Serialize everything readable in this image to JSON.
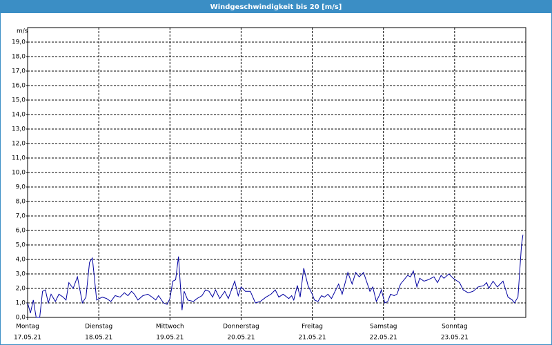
{
  "chart_data": {
    "type": "line",
    "title": "Windgeschwindigkeit bis 20 [m/s]",
    "y_label": "m/s",
    "color": "#0000a0",
    "grid": true,
    "xlim": [
      0,
      7
    ],
    "ylim": [
      0,
      20
    ],
    "xticks": [
      {
        "value": 0,
        "label": "Montag",
        "date": "17.05.21"
      },
      {
        "value": 1,
        "label": "Dienstag",
        "date": "18.05.21"
      },
      {
        "value": 2,
        "label": "Mittwoch",
        "date": "19.05.21"
      },
      {
        "value": 3,
        "label": "Donnerstag",
        "date": "20.05.21"
      },
      {
        "value": 4,
        "label": "Freitag",
        "date": "21.05.21"
      },
      {
        "value": 5,
        "label": "Samstag",
        "date": "22.05.21"
      },
      {
        "value": 6,
        "label": "Sonntag",
        "date": "23.05.21"
      }
    ],
    "yticks": [
      {
        "value": 0,
        "label": "0,0"
      },
      {
        "value": 1,
        "label": "1,0"
      },
      {
        "value": 2,
        "label": "2,0"
      },
      {
        "value": 3,
        "label": "3,0"
      },
      {
        "value": 4,
        "label": "4,0"
      },
      {
        "value": 5,
        "label": "5,0"
      },
      {
        "value": 6,
        "label": "6,0"
      },
      {
        "value": 7,
        "label": "7,0"
      },
      {
        "value": 8,
        "label": "8,0"
      },
      {
        "value": 9,
        "label": "9,0"
      },
      {
        "value": 10,
        "label": "10,0"
      },
      {
        "value": 11,
        "label": "11,0"
      },
      {
        "value": 12,
        "label": "12,0"
      },
      {
        "value": 13,
        "label": "13,0"
      },
      {
        "value": 14,
        "label": "14,0"
      },
      {
        "value": 15,
        "label": "15,0"
      },
      {
        "value": 16,
        "label": "16,0"
      },
      {
        "value": 17,
        "label": "17,0"
      },
      {
        "value": 18,
        "label": "18,0"
      },
      {
        "value": 19,
        "label": "19,0"
      }
    ],
    "x": [
      0,
      0.04,
      0.08,
      0.12,
      0.17,
      0.21,
      0.25,
      0.29,
      0.33,
      0.39,
      0.44,
      0.5,
      0.54,
      0.58,
      0.64,
      0.7,
      0.77,
      0.82,
      0.87,
      0.91,
      0.97,
      1.05,
      1.11,
      1.17,
      1.23,
      1.3,
      1.36,
      1.41,
      1.46,
      1.5,
      1.55,
      1.62,
      1.69,
      1.75,
      1.8,
      1.84,
      1.91,
      1.96,
      2,
      2.04,
      2.08,
      2.12,
      2.17,
      2.2,
      2.25,
      2.33,
      2.38,
      2.45,
      2.5,
      2.55,
      2.6,
      2.64,
      2.7,
      2.77,
      2.82,
      2.91,
      2.96,
      3,
      3.06,
      3.13,
      3.2,
      3.27,
      3.35,
      3.42,
      3.48,
      3.53,
      3.59,
      3.67,
      3.71,
      3.74,
      3.79,
      3.83,
      3.88,
      3.94,
      4,
      4.03,
      4.08,
      4.13,
      4.17,
      4.22,
      4.27,
      4.37,
      4.42,
      4.5,
      4.56,
      4.61,
      4.66,
      4.72,
      4.81,
      4.85,
      4.9,
      4.95,
      4.97,
      5.02,
      5.06,
      5.1,
      5.15,
      5.19,
      5.24,
      5.34,
      5.38,
      5.42,
      5.47,
      5.51,
      5.57,
      5.63,
      5.71,
      5.76,
      5.81,
      5.85,
      5.92,
      5.98,
      6.07,
      6.12,
      6.19,
      6.26,
      6.33,
      6.41,
      6.45,
      6.48,
      6.54,
      6.6,
      6.68,
      6.75,
      6.81,
      6.84,
      6.89,
      6.94,
      6.96
    ],
    "values": [
      1.0,
      0.3,
      1.2,
      0,
      0,
      1.8,
      1.9,
      1.0,
      1.6,
      1.1,
      1.6,
      1.4,
      1.2,
      2.4,
      2.0,
      2.8,
      1.0,
      1.4,
      3.8,
      4.1,
      1.2,
      1.4,
      1.3,
      1.1,
      1.5,
      1.4,
      1.7,
      1.5,
      1.8,
      1.6,
      1.2,
      1.5,
      1.6,
      1.4,
      1.2,
      1.5,
      1.0,
      0.9,
      1.3,
      2.5,
      2.6,
      4.2,
      0.5,
      1.8,
      1.2,
      1.1,
      1.3,
      1.5,
      1.9,
      1.8,
      1.4,
      1.9,
      1.3,
      1.8,
      1.3,
      2.5,
      1.5,
      2.1,
      1.8,
      1.8,
      1.0,
      1.1,
      1.4,
      1.6,
      1.9,
      1.4,
      1.6,
      1.3,
      1.5,
      1.2,
      2.2,
      1.4,
      3.4,
      2.2,
      1.6,
      1.2,
      1.1,
      1.5,
      1.4,
      1.6,
      1.3,
      2.3,
      1.6,
      3.1,
      2.3,
      3.1,
      2.8,
      3.1,
      1.8,
      2.1,
      1.1,
      1.6,
      1.9,
      1.0,
      1.1,
      1.6,
      1.5,
      1.6,
      2.3,
      2.9,
      2.8,
      3.2,
      2.1,
      2.7,
      2.5,
      2.6,
      2.8,
      2.4,
      2.9,
      2.7,
      3.0,
      2.7,
      2.4,
      1.9,
      1.7,
      1.8,
      2.1,
      2.2,
      2.4,
      2.0,
      2.5,
      2.1,
      2.5,
      1.4,
      1.2,
      1.0,
      1.4,
      5.0,
      5.7
    ]
  }
}
